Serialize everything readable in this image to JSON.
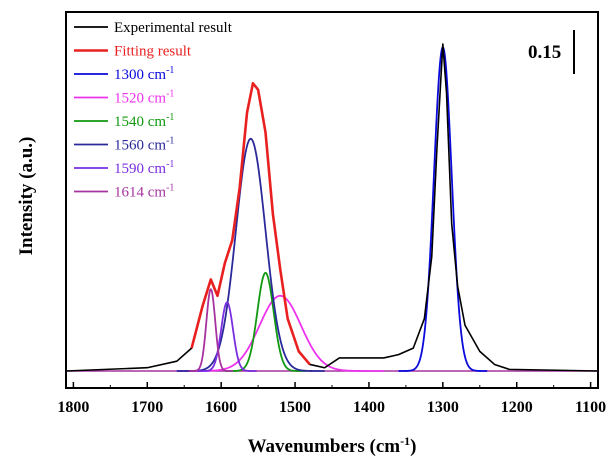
{
  "chart_data": {
    "type": "line",
    "title": "",
    "xlabel": "Wavenumbers (cm",
    "xlabel_sup": "-1",
    "xlabel_close": ")",
    "ylabel": "Intensity (a.u.)",
    "xlim": [
      1810,
      1090
    ],
    "x_reversed": true,
    "ylim": [
      0,
      1
    ],
    "x_ticks": [
      "1800",
      "1700",
      "1600",
      "1500",
      "1400",
      "1300",
      "1200",
      "1100"
    ],
    "y_ticks_shown": false,
    "scale_bar_label": "0.15",
    "legend_position": "top-left",
    "legend": [
      {
        "name": "Experimental result",
        "color": "#000000"
      },
      {
        "name": "Fitting result",
        "color": "#e8201f"
      },
      {
        "name": "1300 cm",
        "sup": "-1",
        "color": "#0a0adc"
      },
      {
        "name": "1520 cm",
        "sup": "-1",
        "color": "#ee33ee"
      },
      {
        "name": "1540 cm",
        "sup": "-1",
        "color": "#119911"
      },
      {
        "name": "1560 cm",
        "sup": "-1",
        "color": "#2a2a9a"
      },
      {
        "name": "1590 cm",
        "sup": "-1",
        "color": "#7a2ee0"
      },
      {
        "name": "1614 cm",
        "sup": "-1",
        "color": "#a6339f"
      }
    ],
    "series": [
      {
        "name": "Experimental result",
        "color": "#000000",
        "points": [
          [
            1810,
            0.0
          ],
          [
            1700,
            0.01
          ],
          [
            1660,
            0.03
          ],
          [
            1640,
            0.07
          ],
          [
            1625,
            0.2
          ],
          [
            1614,
            0.28
          ],
          [
            1605,
            0.23
          ],
          [
            1595,
            0.33
          ],
          [
            1585,
            0.4
          ],
          [
            1575,
            0.56
          ],
          [
            1565,
            0.79
          ],
          [
            1557,
            0.88
          ],
          [
            1550,
            0.86
          ],
          [
            1540,
            0.73
          ],
          [
            1530,
            0.48
          ],
          [
            1520,
            0.31
          ],
          [
            1510,
            0.16
          ],
          [
            1495,
            0.06
          ],
          [
            1480,
            0.02
          ],
          [
            1460,
            0.01
          ],
          [
            1440,
            0.04
          ],
          [
            1420,
            0.04
          ],
          [
            1400,
            0.04
          ],
          [
            1380,
            0.04
          ],
          [
            1360,
            0.05
          ],
          [
            1340,
            0.07
          ],
          [
            1325,
            0.16
          ],
          [
            1315,
            0.35
          ],
          [
            1308,
            0.68
          ],
          [
            1300,
            1.0
          ],
          [
            1295,
            0.85
          ],
          [
            1288,
            0.45
          ],
          [
            1280,
            0.26
          ],
          [
            1270,
            0.14
          ],
          [
            1250,
            0.06
          ],
          [
            1230,
            0.02
          ],
          [
            1210,
            0.005
          ],
          [
            1090,
            0.0
          ]
        ]
      },
      {
        "name": "Fitting result",
        "color": "#e8201f",
        "points": [
          [
            1640,
            0.07
          ],
          [
            1625,
            0.2
          ],
          [
            1614,
            0.28
          ],
          [
            1605,
            0.23
          ],
          [
            1595,
            0.33
          ],
          [
            1585,
            0.4
          ],
          [
            1575,
            0.56
          ],
          [
            1565,
            0.79
          ],
          [
            1557,
            0.88
          ],
          [
            1550,
            0.86
          ],
          [
            1540,
            0.73
          ],
          [
            1530,
            0.48
          ],
          [
            1520,
            0.31
          ],
          [
            1510,
            0.16
          ],
          [
            1495,
            0.06
          ],
          [
            1480,
            0.02
          ]
        ]
      }
    ],
    "peaks": [
      {
        "name": "1300 cm-1",
        "color": "#0a0adc",
        "center": 1300,
        "height": 0.99,
        "width": 12
      },
      {
        "name": "1520 cm-1",
        "color": "#ee33ee",
        "center": 1520,
        "height": 0.23,
        "width": 28
      },
      {
        "name": "1540 cm-1",
        "color": "#119911",
        "center": 1540,
        "height": 0.3,
        "width": 11
      },
      {
        "name": "1560 cm-1",
        "color": "#2a2a9a",
        "center": 1560,
        "height": 0.71,
        "width": 20
      },
      {
        "name": "1590 cm-1",
        "color": "#7a2ee0",
        "center": 1592,
        "height": 0.21,
        "width": 8
      },
      {
        "name": "1614 cm-1",
        "color": "#a6339f",
        "center": 1614,
        "height": 0.25,
        "width": 6
      }
    ]
  }
}
